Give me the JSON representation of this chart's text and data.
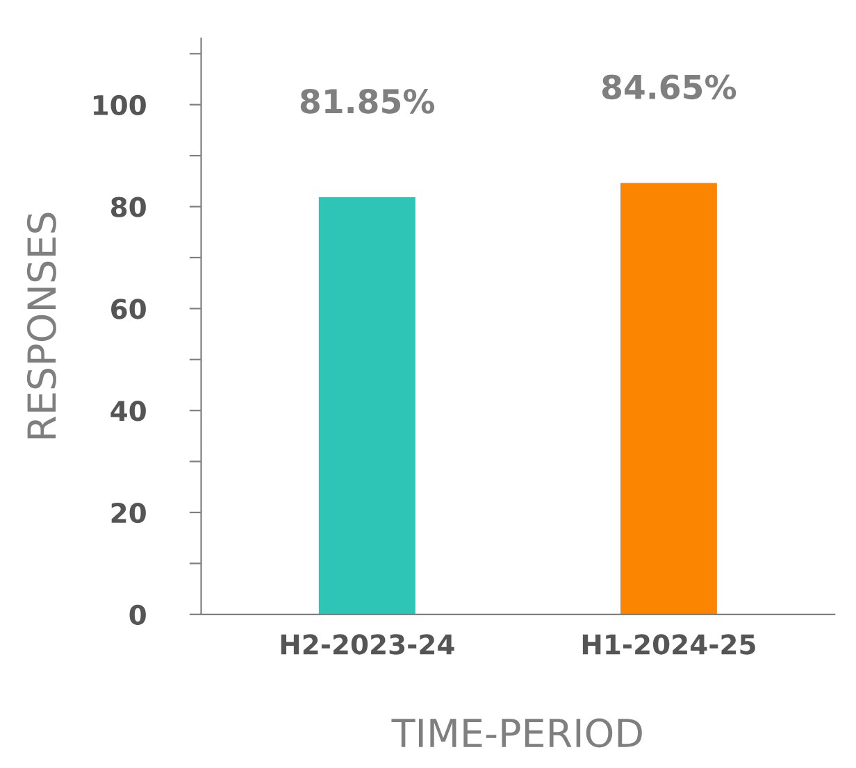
{
  "chart_data": {
    "type": "bar",
    "xlabel": "TIME-PERIOD",
    "ylabel": "RESPONSES",
    "categories": [
      "H2-2023-24",
      "H1-2024-25"
    ],
    "values": [
      81.85,
      84.65
    ],
    "colors": [
      "#2ec4b6",
      "#fb8500"
    ],
    "value_labels": [
      "81.85%",
      "84.65%"
    ],
    "ylim": [
      0,
      113
    ],
    "yticks": [
      0,
      {
        "value": 10,
        "label": null
      },
      20,
      {
        "value": 30,
        "label": null
      },
      40,
      {
        "value": 50,
        "label": null
      },
      60,
      {
        "value": 70,
        "label": null
      },
      80,
      {
        "value": 90,
        "label": null
      },
      100,
      {
        "value": 110,
        "label": null
      }
    ],
    "grid": false
  }
}
